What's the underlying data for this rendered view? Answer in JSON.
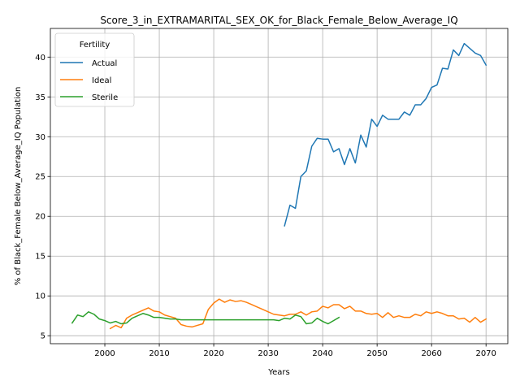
{
  "chart_data": {
    "type": "line",
    "title": "Score_3_in_EXTRAMARITAL_SEX_OK_for_Black_Female_Below_Average_IQ",
    "xlabel": "Years",
    "ylabel": "% of Black_Female Below_Average_IQ Population",
    "xlim": [
      1990,
      2074
    ],
    "ylim": [
      4.0,
      43.6
    ],
    "xticks": [
      2000,
      2010,
      2020,
      2030,
      2040,
      2050,
      2060,
      2070
    ],
    "yticks": [
      5,
      10,
      15,
      20,
      25,
      30,
      35,
      40
    ],
    "grid": true,
    "legend": {
      "title": "Fertility",
      "placement": "top-left"
    },
    "series": [
      {
        "name": "Actual",
        "color": "#1f77b4",
        "x": [
          2033,
          2034,
          2035,
          2036,
          2037,
          2038,
          2039,
          2040,
          2041,
          2042,
          2043,
          2044,
          2045,
          2046,
          2047,
          2048,
          2049,
          2050,
          2051,
          2052,
          2053,
          2054,
          2055,
          2056,
          2057,
          2058,
          2059,
          2060,
          2061,
          2062,
          2063,
          2064,
          2065,
          2066,
          2067,
          2068,
          2069,
          2070
        ],
        "y": [
          18.8,
          21.4,
          21.0,
          25.0,
          25.7,
          28.8,
          29.8,
          29.7,
          29.7,
          28.1,
          28.5,
          26.5,
          28.5,
          26.7,
          30.2,
          28.7,
          32.2,
          31.3,
          32.7,
          32.2,
          32.2,
          32.2,
          33.1,
          32.7,
          34.0,
          34.0,
          34.8,
          36.2,
          36.5,
          38.6,
          38.5,
          40.9,
          40.2,
          41.7,
          41.1,
          40.5,
          40.2,
          39.0
        ]
      },
      {
        "name": "Ideal",
        "color": "#ff7f0e",
        "x": [
          2001,
          2002,
          2003,
          2004,
          2005,
          2006,
          2007,
          2008,
          2009,
          2010,
          2011,
          2012,
          2013,
          2014,
          2015,
          2016,
          2017,
          2018,
          2019,
          2020,
          2021,
          2022,
          2023,
          2024,
          2025,
          2026,
          2027,
          2028,
          2029,
          2030,
          2031,
          2032,
          2033,
          2034,
          2035,
          2036,
          2037,
          2038,
          2039,
          2040,
          2041,
          2042,
          2043,
          2044,
          2045,
          2046,
          2047,
          2048,
          2049,
          2050,
          2051,
          2052,
          2053,
          2054,
          2055,
          2056,
          2057,
          2058,
          2059,
          2060,
          2061,
          2062,
          2063,
          2064,
          2065,
          2066,
          2067,
          2068,
          2069,
          2070
        ],
        "y": [
          5.9,
          6.3,
          6.0,
          7.2,
          7.6,
          7.9,
          8.2,
          8.5,
          8.1,
          8.0,
          7.6,
          7.4,
          7.2,
          6.4,
          6.2,
          6.1,
          6.3,
          6.5,
          8.3,
          9.1,
          9.6,
          9.2,
          9.5,
          9.3,
          9.4,
          9.2,
          8.9,
          8.6,
          8.3,
          8.0,
          7.7,
          7.6,
          7.5,
          7.7,
          7.7,
          8.0,
          7.6,
          8.0,
          8.1,
          8.7,
          8.5,
          8.9,
          8.9,
          8.4,
          8.7,
          8.1,
          8.1,
          7.8,
          7.7,
          7.8,
          7.3,
          7.9,
          7.3,
          7.5,
          7.3,
          7.3,
          7.7,
          7.5,
          8.0,
          7.8,
          8.0,
          7.8,
          7.5,
          7.5,
          7.1,
          7.2,
          6.7,
          7.3,
          6.7,
          7.1
        ]
      },
      {
        "name": "Sterile",
        "color": "#2ca02c",
        "x": [
          1994,
          1995,
          1996,
          1997,
          1998,
          1999,
          2000,
          2001,
          2002,
          2003,
          2004,
          2005,
          2006,
          2007,
          2008,
          2009,
          2010,
          2011,
          2012,
          2013,
          2014,
          2015,
          2016,
          2017,
          2018,
          2019,
          2020,
          2021,
          2022,
          2023,
          2024,
          2025,
          2026,
          2027,
          2028,
          2029,
          2030,
          2031,
          2032,
          2033,
          2034,
          2035,
          2036,
          2037,
          2038,
          2039,
          2040,
          2041,
          2042,
          2043
        ],
        "y": [
          6.6,
          7.6,
          7.4,
          8.0,
          7.7,
          7.1,
          6.9,
          6.6,
          6.8,
          6.5,
          6.6,
          7.2,
          7.5,
          7.8,
          7.6,
          7.3,
          7.3,
          7.2,
          7.1,
          7.1,
          7.0,
          7.0,
          7.0,
          7.0,
          7.0,
          7.0,
          7.0,
          7.0,
          7.0,
          7.0,
          7.0,
          7.0,
          7.0,
          7.0,
          7.0,
          7.0,
          7.0,
          7.0,
          6.9,
          7.2,
          7.1,
          7.6,
          7.4,
          6.5,
          6.6,
          7.2,
          6.8,
          6.5,
          6.9,
          7.3
        ]
      }
    ]
  }
}
